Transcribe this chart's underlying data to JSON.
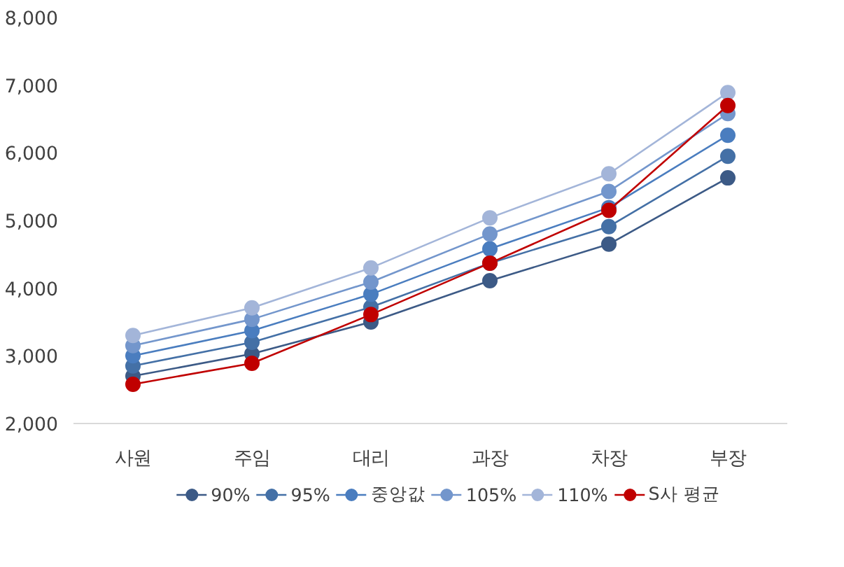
{
  "chart_data": {
    "type": "line",
    "categories": [
      "사원",
      "주임",
      "대리",
      "과장",
      "차장",
      "부장"
    ],
    "series": [
      {
        "name": "90%",
        "color": "#3c5a86",
        "values": [
          2700,
          3030,
          3500,
          4110,
          4650,
          5630
        ]
      },
      {
        "name": "95%",
        "color": "#4470a6",
        "values": [
          2850,
          3200,
          3720,
          4370,
          4910,
          5950
        ]
      },
      {
        "name": "중앙값",
        "color": "#4a7dbf",
        "values": [
          3000,
          3370,
          3910,
          4580,
          5190,
          6260
        ]
      },
      {
        "name": "105%",
        "color": "#7396cc",
        "values": [
          3150,
          3540,
          4090,
          4800,
          5430,
          6580
        ]
      },
      {
        "name": "110%",
        "color": "#a3b5d9",
        "values": [
          3300,
          3710,
          4300,
          5040,
          5690,
          6890
        ]
      },
      {
        "name": "S사 평균",
        "color": "#c00000",
        "values": [
          2580,
          2890,
          3610,
          4370,
          5150,
          6700
        ]
      }
    ],
    "ylim": [
      2000,
      8000
    ],
    "yticks": [
      {
        "value": 2000,
        "label": "2,000"
      },
      {
        "value": 3000,
        "label": "3,000"
      },
      {
        "value": 4000,
        "label": "4,000"
      },
      {
        "value": 5000,
        "label": "5,000"
      },
      {
        "value": 6000,
        "label": "6,000"
      },
      {
        "value": 7000,
        "label": "7,000"
      },
      {
        "value": 8000,
        "label": "8,000"
      }
    ],
    "grid": false,
    "legend": "bottom",
    "marker": "circle",
    "line_style": "solid"
  }
}
